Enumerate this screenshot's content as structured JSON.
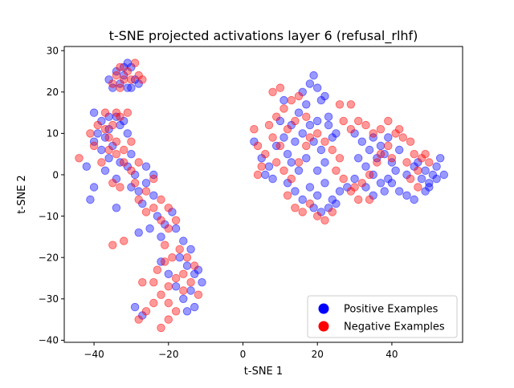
{
  "chart_data": {
    "type": "scatter",
    "title": "t-SNE projected activations layer 6 (refusal_rlhf)",
    "xlabel": "t-SNE 1",
    "ylabel": "t-SNE 2",
    "xlim": [
      -48,
      59
    ],
    "ylim": [
      -40.5,
      31
    ],
    "xticks": [
      -40,
      -20,
      0,
      20,
      40
    ],
    "yticks": [
      -40,
      -30,
      -20,
      -10,
      0,
      10,
      20,
      30
    ],
    "grid": false,
    "legend_position": "bottom-right",
    "series": [
      {
        "name": "Positive Examples",
        "color": "#0000ff",
        "points": [
          [
            -33,
            22
          ],
          [
            -32,
            24
          ],
          [
            -31,
            21
          ],
          [
            -30,
            26
          ],
          [
            -29,
            23
          ],
          [
            -34,
            25
          ],
          [
            -30,
            21
          ],
          [
            -31,
            27
          ],
          [
            -28,
            22
          ],
          [
            -35,
            21
          ],
          [
            -36,
            23
          ],
          [
            -32,
            26
          ],
          [
            -40,
            15
          ],
          [
            -38,
            13
          ],
          [
            -36,
            11
          ],
          [
            -34,
            14
          ],
          [
            -39,
            10
          ],
          [
            -37,
            9
          ],
          [
            -35,
            7
          ],
          [
            -33,
            12
          ],
          [
            -31,
            10
          ],
          [
            -30,
            5
          ],
          [
            -33,
            3
          ],
          [
            -36,
            4
          ],
          [
            -38,
            6
          ],
          [
            -40,
            8
          ],
          [
            -42,
            2
          ],
          [
            -37,
            1
          ],
          [
            -34,
            -1
          ],
          [
            -31,
            2
          ],
          [
            -29,
            0
          ],
          [
            -36,
            14
          ],
          [
            -32,
            13
          ],
          [
            -30,
            -3
          ],
          [
            -28,
            -4
          ],
          [
            -26,
            -2
          ],
          [
            -24,
            -5
          ],
          [
            -27,
            -7
          ],
          [
            -23,
            -10
          ],
          [
            -21,
            -12
          ],
          [
            -19,
            -9
          ],
          [
            -22,
            -15
          ],
          [
            -25,
            -13
          ],
          [
            -26,
            2
          ],
          [
            -24,
            0
          ],
          [
            -18,
            -13
          ],
          [
            -16,
            -16
          ],
          [
            -14,
            -18
          ],
          [
            -17,
            -20
          ],
          [
            -15,
            -22
          ],
          [
            -13,
            -24
          ],
          [
            -11,
            -26
          ],
          [
            -12,
            -23
          ],
          [
            -14,
            -28
          ],
          [
            -16,
            -30
          ],
          [
            -15,
            -33
          ],
          [
            -13,
            -32
          ],
          [
            -18,
            -27
          ],
          [
            -20,
            -24
          ],
          [
            -22,
            -21
          ],
          [
            -29,
            -32
          ],
          [
            -27,
            -34
          ],
          [
            -40,
            -3
          ],
          [
            -41,
            -6
          ],
          [
            -34,
            -8
          ],
          [
            -28,
            -14
          ],
          [
            3,
            8
          ],
          [
            5,
            4
          ],
          [
            7,
            2
          ],
          [
            9,
            7
          ],
          [
            11,
            9
          ],
          [
            12,
            5
          ],
          [
            14,
            8
          ],
          [
            13,
            3
          ],
          [
            15,
            1
          ],
          [
            17,
            4
          ],
          [
            16,
            10
          ],
          [
            18,
            12
          ],
          [
            20,
            13
          ],
          [
            19,
            8
          ],
          [
            21,
            6
          ],
          [
            22,
            3
          ],
          [
            20,
            1
          ],
          [
            24,
            9
          ],
          [
            23,
            14
          ],
          [
            17,
            17
          ],
          [
            16,
            20
          ],
          [
            18,
            22
          ],
          [
            20,
            21
          ],
          [
            22,
            19
          ],
          [
            19,
            24
          ],
          [
            21,
            18
          ],
          [
            15,
            15
          ],
          [
            13,
            12
          ],
          [
            11,
            18
          ],
          [
            23,
            12
          ],
          [
            25,
            10
          ],
          [
            10,
            13
          ],
          [
            6,
            0
          ],
          [
            12,
            -2
          ],
          [
            8,
            -1
          ],
          [
            14,
            -4
          ],
          [
            16,
            -6
          ],
          [
            18,
            -3
          ],
          [
            20,
            -5
          ],
          [
            22,
            -2
          ],
          [
            24,
            -6
          ],
          [
            26,
            -4
          ],
          [
            28,
            -3
          ],
          [
            30,
            -1
          ],
          [
            19,
            -8
          ],
          [
            21,
            -9
          ],
          [
            23,
            -8
          ],
          [
            25,
            -7
          ],
          [
            30,
            10
          ],
          [
            32,
            8
          ],
          [
            34,
            6
          ],
          [
            36,
            4
          ],
          [
            38,
            5
          ],
          [
            40,
            3
          ],
          [
            42,
            6
          ],
          [
            41,
            1
          ],
          [
            39,
            -1
          ],
          [
            37,
            -2
          ],
          [
            35,
            0
          ],
          [
            33,
            2
          ],
          [
            31,
            4
          ],
          [
            33,
            -3
          ],
          [
            35,
            -5
          ],
          [
            38,
            -4
          ],
          [
            40,
            -2
          ],
          [
            42,
            -4
          ],
          [
            44,
            -5
          ],
          [
            46,
            -6
          ],
          [
            44,
            0
          ],
          [
            46,
            2
          ],
          [
            48,
            -1
          ],
          [
            49,
            1
          ],
          [
            50,
            -2
          ],
          [
            51,
            0
          ],
          [
            52,
            2
          ],
          [
            53,
            4
          ],
          [
            52,
            -1
          ],
          [
            50,
            -3
          ],
          [
            49,
            -4
          ],
          [
            54,
            0
          ],
          [
            47,
            3
          ],
          [
            35,
            9
          ],
          [
            39,
            9
          ],
          [
            37,
            7
          ]
        ]
      },
      {
        "name": "Negative Examples",
        "color": "#ff0000",
        "points": [
          [
            -34,
            24
          ],
          [
            -33,
            21
          ],
          [
            -32,
            23
          ],
          [
            -31,
            25
          ],
          [
            -29,
            27
          ],
          [
            -28,
            24
          ],
          [
            -33,
            26
          ],
          [
            -30,
            23
          ],
          [
            -27,
            23
          ],
          [
            -35,
            22
          ],
          [
            -39,
            12
          ],
          [
            -37,
            11
          ],
          [
            -35,
            12
          ],
          [
            -33,
            14
          ],
          [
            -31,
            15
          ],
          [
            -36,
            9
          ],
          [
            -34,
            8
          ],
          [
            -32,
            6
          ],
          [
            -30,
            8
          ],
          [
            -38,
            3
          ],
          [
            -36,
            6
          ],
          [
            -34,
            5
          ],
          [
            -32,
            3
          ],
          [
            -30,
            1
          ],
          [
            -28,
            3
          ],
          [
            -40,
            7
          ],
          [
            -41,
            10
          ],
          [
            -44,
            4
          ],
          [
            -37,
            15
          ],
          [
            -34,
            15
          ],
          [
            -35,
            -2
          ],
          [
            -33,
            -3
          ],
          [
            -28,
            -6
          ],
          [
            -26,
            -4
          ],
          [
            -24,
            -1
          ],
          [
            -22,
            -6
          ],
          [
            -20,
            -8
          ],
          [
            -22,
            -11
          ],
          [
            -20,
            -13
          ],
          [
            -18,
            -11
          ],
          [
            -24,
            -8
          ],
          [
            -26,
            -9
          ],
          [
            -29,
            -2
          ],
          [
            -32,
            -16
          ],
          [
            -35,
            -17
          ],
          [
            -21,
            -17
          ],
          [
            -19,
            -20
          ],
          [
            -17,
            -18
          ],
          [
            -15,
            -20
          ],
          [
            -13,
            -22
          ],
          [
            -16,
            -24
          ],
          [
            -18,
            -25
          ],
          [
            -20,
            -27
          ],
          [
            -22,
            -29
          ],
          [
            -24,
            -31
          ],
          [
            -26,
            -33
          ],
          [
            -28,
            -35
          ],
          [
            -20,
            -31
          ],
          [
            -18,
            -33
          ],
          [
            -20,
            -35
          ],
          [
            -22,
            -37
          ],
          [
            -16,
            -28
          ],
          [
            -14,
            -26
          ],
          [
            -12,
            -29
          ],
          [
            -24,
            -26
          ],
          [
            -27,
            -26
          ],
          [
            -23,
            -23
          ],
          [
            -21,
            -21
          ],
          [
            3,
            11
          ],
          [
            4,
            7
          ],
          [
            6,
            5
          ],
          [
            8,
            9
          ],
          [
            10,
            7
          ],
          [
            12,
            11
          ],
          [
            14,
            13
          ],
          [
            9,
            3
          ],
          [
            11,
            1
          ],
          [
            13,
            -1
          ],
          [
            15,
            3
          ],
          [
            17,
            7
          ],
          [
            7,
            12
          ],
          [
            9,
            14
          ],
          [
            11,
            16
          ],
          [
            13,
            18
          ],
          [
            8,
            20
          ],
          [
            10,
            21
          ],
          [
            15,
            19
          ],
          [
            17,
            14
          ],
          [
            18,
            9
          ],
          [
            20,
            10
          ],
          [
            22,
            8
          ],
          [
            24,
            6
          ],
          [
            26,
            4
          ],
          [
            27,
            13
          ],
          [
            29,
            17
          ],
          [
            26,
            17
          ],
          [
            25,
            1
          ],
          [
            27,
            -1
          ],
          [
            29,
            -4
          ],
          [
            31,
            -6
          ],
          [
            12,
            -5
          ],
          [
            14,
            -8
          ],
          [
            16,
            -9
          ],
          [
            18,
            -7
          ],
          [
            20,
            -10
          ],
          [
            22,
            -11
          ],
          [
            24,
            -9
          ],
          [
            5,
            2
          ],
          [
            4,
            0
          ],
          [
            29,
            11
          ],
          [
            31,
            13
          ],
          [
            33,
            12
          ],
          [
            35,
            10
          ],
          [
            37,
            11
          ],
          [
            39,
            13
          ],
          [
            41,
            10
          ],
          [
            43,
            9
          ],
          [
            45,
            8
          ],
          [
            42,
            11
          ],
          [
            39,
            7
          ],
          [
            36,
            3
          ],
          [
            34,
            0
          ],
          [
            32,
            -2
          ],
          [
            34,
            -6
          ],
          [
            30,
            -3
          ],
          [
            37,
            5
          ],
          [
            40,
            4
          ],
          [
            46,
            5
          ],
          [
            48,
            4
          ],
          [
            50,
            3
          ],
          [
            47,
            1
          ],
          [
            45,
            -1
          ],
          [
            47,
            -3
          ],
          [
            49,
            5
          ],
          [
            44,
            3
          ]
        ]
      }
    ]
  }
}
